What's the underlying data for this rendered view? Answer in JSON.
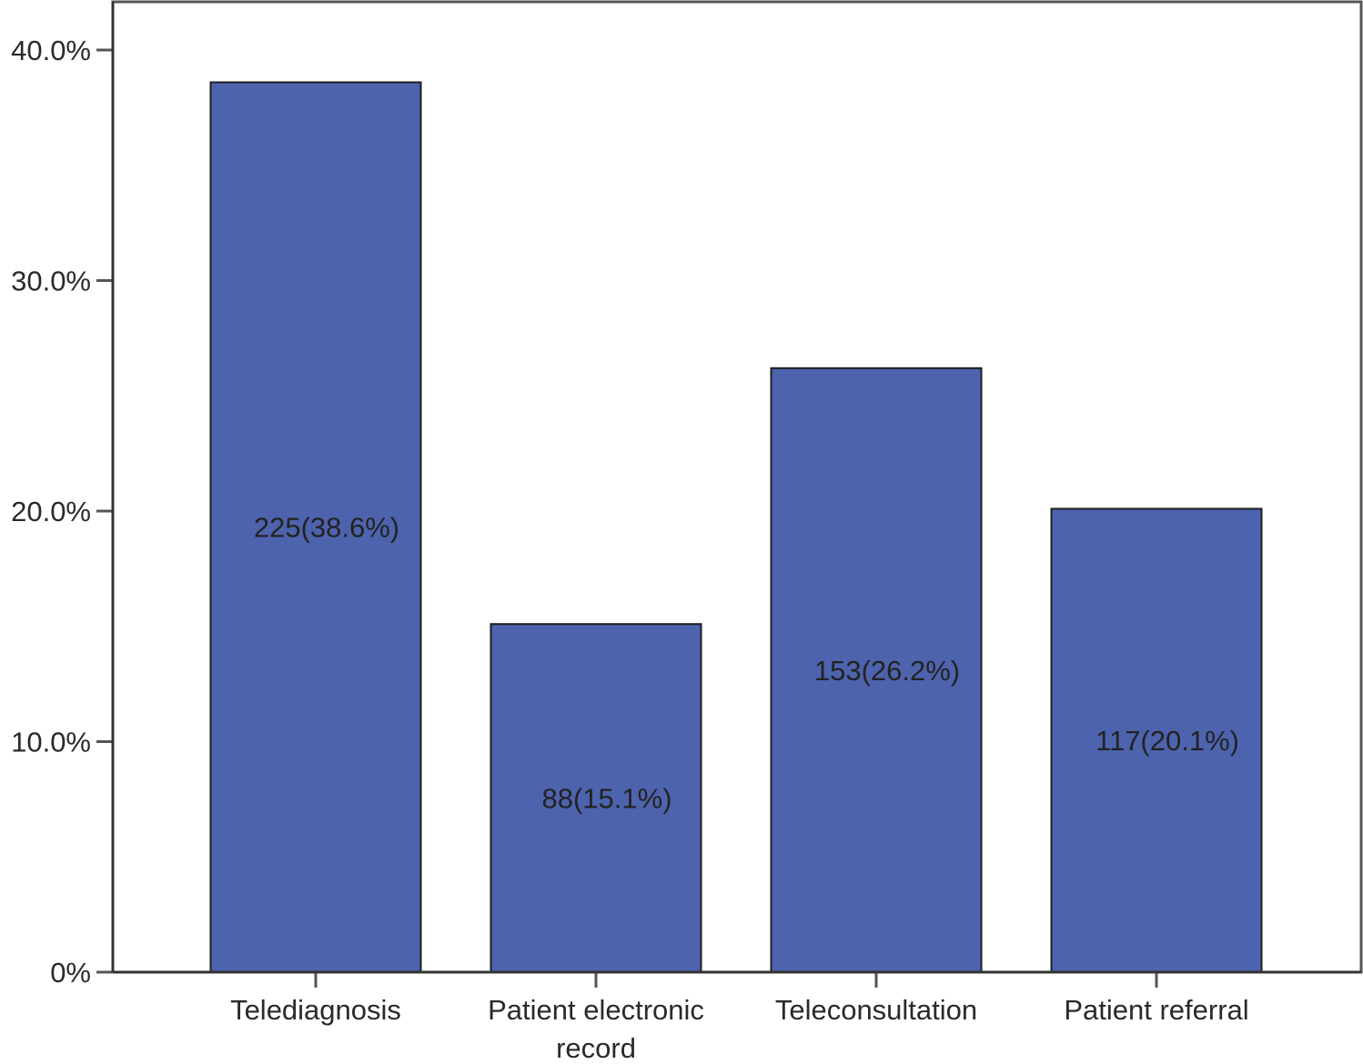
{
  "chart_data": {
    "type": "bar",
    "categories": [
      "Telediagnosis",
      "Patient electronic record",
      "Teleconsultation",
      "Patient referral"
    ],
    "category_label_lines": [
      [
        "Telediagnosis"
      ],
      [
        "Patient electronic",
        "record"
      ],
      [
        "Teleconsultation"
      ],
      [
        "Patient referral"
      ]
    ],
    "values": [
      38.6,
      15.1,
      26.2,
      20.1
    ],
    "counts": [
      225,
      88,
      153,
      117
    ],
    "data_labels": [
      "225(38.6%)",
      "88(15.1%)",
      "153(26.2%)",
      "117(20.1%)"
    ],
    "title": "",
    "xlabel": "",
    "ylabel": "",
    "ylim": [
      0,
      42
    ],
    "y_ticks": [
      0,
      10,
      20,
      30,
      40
    ],
    "y_tick_labels": [
      "0%",
      "10.0%",
      "20.0%",
      "30.0%",
      "40.0%"
    ],
    "grid": false,
    "legend": "none",
    "colors": {
      "bar": "#4d63ad",
      "bar_edge": "#1e1e1e",
      "axis": "#555555",
      "text": "#2a2a2a"
    }
  }
}
